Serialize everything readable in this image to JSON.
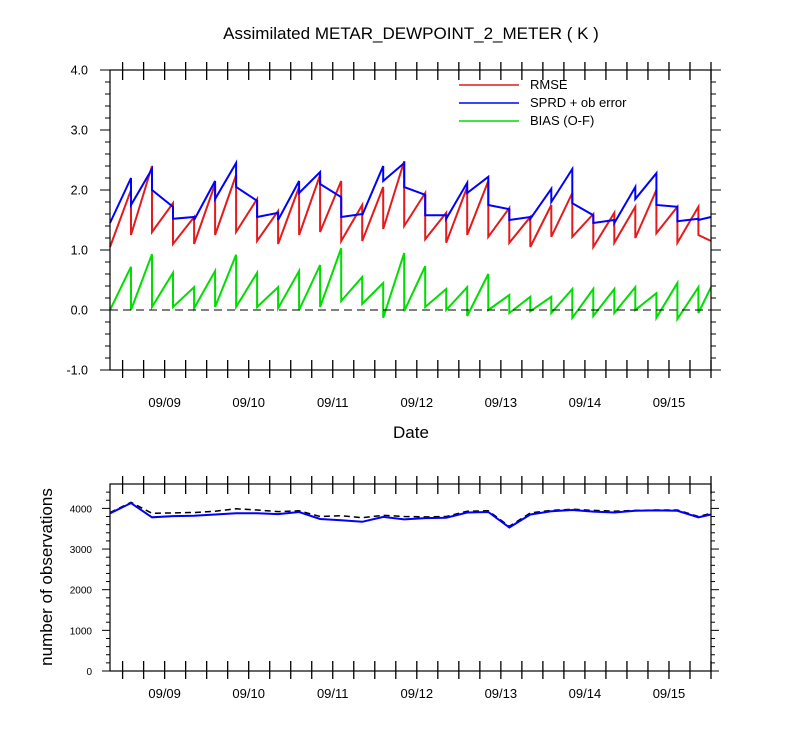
{
  "chart_data": [
    {
      "type": "line",
      "title": "Assimilated METAR_DEWPOINT_2_METER ( K )",
      "xlabel": "Date",
      "ylabel": "",
      "x_tick_labels": [
        "09/09",
        "09/10",
        "09/11",
        "09/12",
        "09/13",
        "09/14",
        "09/15"
      ],
      "y_tick_labels": [
        "4.0",
        "3.0",
        "2.0",
        "1.0",
        "0.0",
        "-1.0"
      ],
      "ylim": [
        -1.0,
        4.0
      ],
      "x_range_days": [
        8.35,
        15.5
      ],
      "zero_line": "dashed black",
      "legend": {
        "placement": "top-right",
        "entries": [
          {
            "label": "RMSE",
            "color": "#e41a1c"
          },
          {
            "label": "SPRD + ob error",
            "color": "#0000ff"
          },
          {
            "label": "BIAS (O-F)",
            "color": "#00dd00"
          }
        ]
      },
      "series": [
        {
          "name": "RMSE",
          "color": "#e41a1c",
          "x": [
            8.35,
            8.6,
            8.6,
            8.85,
            8.85,
            9.1,
            9.1,
            9.35,
            9.35,
            9.6,
            9.6,
            9.85,
            9.85,
            10.1,
            10.1,
            10.35,
            10.35,
            10.6,
            10.6,
            10.85,
            10.85,
            11.1,
            11.1,
            11.35,
            11.35,
            11.6,
            11.6,
            11.85,
            11.85,
            12.1,
            12.1,
            12.35,
            12.35,
            12.6,
            12.6,
            12.85,
            12.85,
            13.1,
            13.1,
            13.35,
            13.35,
            13.6,
            13.6,
            13.85,
            13.85,
            14.1,
            14.1,
            14.35,
            14.35,
            14.6,
            14.6,
            14.85,
            14.85,
            15.1,
            15.1,
            15.35,
            15.35,
            15.5
          ],
          "y": [
            1.05,
            2.0,
            1.25,
            2.4,
            1.3,
            1.78,
            1.1,
            1.55,
            1.1,
            2.1,
            1.25,
            2.25,
            1.3,
            1.85,
            1.15,
            1.65,
            1.1,
            2.05,
            1.25,
            2.25,
            1.3,
            2.15,
            1.15,
            1.75,
            1.15,
            2.05,
            1.35,
            2.48,
            1.4,
            1.95,
            1.18,
            1.62,
            1.12,
            2.05,
            1.25,
            2.15,
            1.22,
            1.7,
            1.12,
            1.55,
            1.05,
            1.75,
            1.22,
            1.95,
            1.22,
            1.6,
            1.05,
            1.62,
            1.12,
            1.72,
            1.2,
            2.0,
            1.28,
            1.72,
            1.12,
            1.72,
            1.25,
            1.15
          ]
        },
        {
          "name": "SPRD + ob error",
          "color": "#0000ff",
          "x": [
            8.35,
            8.6,
            8.6,
            8.85,
            8.85,
            9.1,
            9.1,
            9.35,
            9.35,
            9.6,
            9.6,
            9.85,
            9.85,
            10.1,
            10.1,
            10.35,
            10.35,
            10.6,
            10.6,
            10.85,
            10.85,
            11.1,
            11.1,
            11.35,
            11.35,
            11.6,
            11.6,
            11.85,
            11.85,
            12.1,
            12.1,
            12.35,
            12.35,
            12.6,
            12.6,
            12.85,
            12.85,
            13.1,
            13.1,
            13.35,
            13.35,
            13.6,
            13.6,
            13.85,
            13.85,
            14.1,
            14.1,
            14.35,
            14.35,
            14.6,
            14.6,
            14.85,
            14.85,
            15.1,
            15.1,
            15.35,
            15.35,
            15.5
          ],
          "y": [
            1.45,
            2.2,
            1.75,
            2.35,
            2.0,
            1.72,
            1.52,
            1.55,
            1.5,
            2.15,
            1.85,
            2.45,
            2.05,
            1.82,
            1.55,
            1.62,
            1.5,
            2.15,
            1.95,
            2.3,
            2.1,
            1.88,
            1.55,
            1.6,
            1.58,
            2.4,
            2.15,
            2.45,
            2.05,
            1.92,
            1.58,
            1.58,
            1.52,
            2.12,
            1.95,
            2.22,
            1.75,
            1.68,
            1.5,
            1.55,
            1.52,
            2.02,
            1.8,
            2.35,
            1.78,
            1.58,
            1.45,
            1.5,
            1.45,
            2.05,
            1.85,
            2.28,
            1.75,
            1.72,
            1.48,
            1.52,
            1.5,
            1.55
          ]
        },
        {
          "name": "BIAS (O-F)",
          "color": "#00dd00",
          "x": [
            8.35,
            8.6,
            8.6,
            8.85,
            8.85,
            9.1,
            9.1,
            9.35,
            9.35,
            9.6,
            9.6,
            9.85,
            9.85,
            10.1,
            10.1,
            10.35,
            10.35,
            10.6,
            10.6,
            10.85,
            10.85,
            11.1,
            11.1,
            11.35,
            11.35,
            11.6,
            11.6,
            11.85,
            11.85,
            12.1,
            12.1,
            12.35,
            12.35,
            12.6,
            12.6,
            12.85,
            12.85,
            13.1,
            13.1,
            13.35,
            13.35,
            13.6,
            13.6,
            13.85,
            13.85,
            14.1,
            14.1,
            14.35,
            14.35,
            14.6,
            14.6,
            14.85,
            14.85,
            15.1,
            15.1,
            15.35,
            15.35,
            15.5
          ],
          "y": [
            0.0,
            0.72,
            0.0,
            0.93,
            0.05,
            0.62,
            0.05,
            0.38,
            0.03,
            0.65,
            0.05,
            0.92,
            0.05,
            0.62,
            0.05,
            0.38,
            0.03,
            0.65,
            0.0,
            0.75,
            0.05,
            1.03,
            0.15,
            0.55,
            0.1,
            0.45,
            -0.13,
            0.95,
            -0.02,
            0.73,
            0.05,
            0.35,
            0.0,
            0.38,
            -0.1,
            0.6,
            0.0,
            0.25,
            -0.05,
            0.22,
            -0.02,
            0.22,
            -0.05,
            0.35,
            -0.13,
            0.35,
            -0.1,
            0.35,
            -0.05,
            0.38,
            0.0,
            0.28,
            -0.13,
            0.45,
            -0.15,
            0.38,
            -0.05,
            0.38
          ]
        }
      ]
    },
    {
      "type": "line",
      "title": "",
      "xlabel": "",
      "ylabel": "number of observations",
      "x_tick_labels": [
        "09/09",
        "09/10",
        "09/11",
        "09/12",
        "09/13",
        "09/14",
        "09/15"
      ],
      "y_tick_labels": [
        "4000",
        "3000",
        "2000",
        "1000",
        "0"
      ],
      "ylim": [
        0,
        4600
      ],
      "x_range_days": [
        8.35,
        15.5
      ],
      "series": [
        {
          "style": "dashed",
          "color": "#000000",
          "x": [
            8.35,
            8.6,
            8.85,
            9.1,
            9.35,
            9.6,
            9.85,
            10.1,
            10.35,
            10.6,
            10.85,
            11.1,
            11.35,
            11.6,
            11.85,
            12.1,
            12.35,
            12.6,
            12.85,
            13.1,
            13.35,
            13.6,
            13.85,
            14.1,
            14.35,
            14.6,
            14.85,
            15.1,
            15.35,
            15.5
          ],
          "y": [
            3900,
            4150,
            3880,
            3890,
            3900,
            3930,
            3990,
            3960,
            3920,
            3940,
            3800,
            3820,
            3770,
            3830,
            3800,
            3790,
            3800,
            3930,
            3940,
            3560,
            3890,
            3950,
            3980,
            3950,
            3930,
            3950,
            3960,
            3960,
            3800,
            3880
          ]
        },
        {
          "style": "solid",
          "color": "#0000ff",
          "x": [
            8.35,
            8.6,
            8.85,
            9.1,
            9.35,
            9.6,
            9.85,
            10.1,
            10.35,
            10.6,
            10.85,
            11.1,
            11.35,
            11.6,
            11.85,
            12.1,
            12.35,
            12.6,
            12.85,
            13.1,
            13.35,
            13.6,
            13.85,
            14.1,
            14.35,
            14.6,
            14.85,
            15.1,
            15.35,
            15.5
          ],
          "y": [
            3880,
            4130,
            3780,
            3810,
            3820,
            3850,
            3880,
            3880,
            3860,
            3910,
            3740,
            3710,
            3670,
            3790,
            3730,
            3760,
            3770,
            3900,
            3910,
            3530,
            3850,
            3930,
            3960,
            3920,
            3900,
            3940,
            3950,
            3940,
            3780,
            3850
          ]
        }
      ]
    }
  ]
}
